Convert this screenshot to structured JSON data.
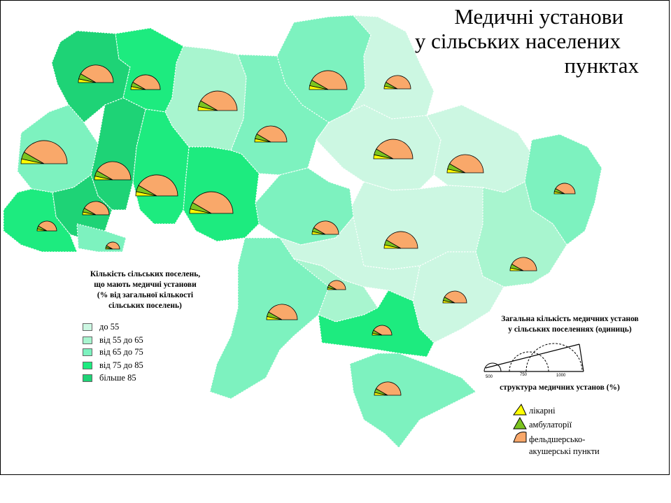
{
  "title": {
    "line1": "Медичні установи",
    "line2": "у сільських населених",
    "line3": "пунктах"
  },
  "legend_share": {
    "title_line1": "Кількість сільських поселень,",
    "title_line2": "що мають медичні установи",
    "title_line3": "(% від загальної кількості",
    "title_line4": "сільських поселень)",
    "classes": [
      {
        "label": "до 55",
        "color": "#ccf7e2"
      },
      {
        "label": "від 55 до  65",
        "color": "#a8f5cf"
      },
      {
        "label": "від 65  до 75",
        "color": "#7df2bf"
      },
      {
        "label": "від 75 до  85",
        "color": "#1deb7f"
      },
      {
        "label": "більше 85",
        "color": "#1ed376"
      }
    ]
  },
  "legend_total": {
    "title_line1": "Загальна кількість медичних установ",
    "title_line2": "у сільських поселеннях (одиниць)",
    "scale_values": [
      "500",
      "750",
      "1000"
    ],
    "structure_label": "структура медичних установ (%)"
  },
  "legend_types": [
    {
      "label": "лікарні",
      "color": "#ffff00"
    },
    {
      "label": "амбулаторії",
      "color": "#7bc420"
    },
    {
      "label": "фельдшерсько-",
      "label2": "акушерські пункти",
      "color": "#f9a86a"
    }
  ],
  "colors": {
    "border": "#ffffff",
    "outline": "#000000"
  }
}
